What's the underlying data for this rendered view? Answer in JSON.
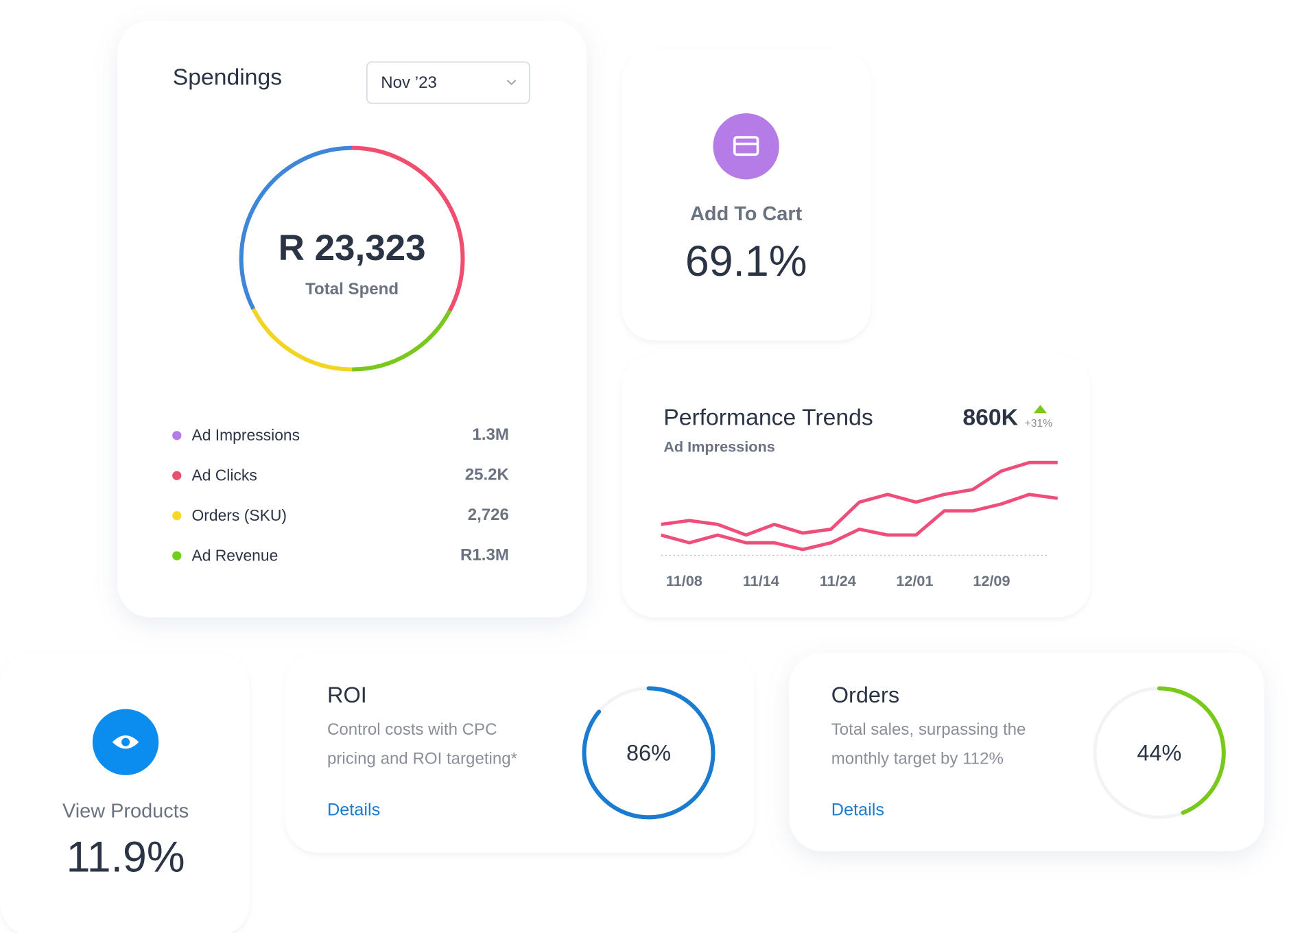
{
  "spendings": {
    "title": "Spendings",
    "period": "Nov ’23",
    "total": "R 23,323",
    "total_label": "Total Spend",
    "items": [
      {
        "label": "Ad Impressions",
        "value": "1.3M",
        "color": "#b57be6"
      },
      {
        "label": "Ad Clicks",
        "value": "25.2K",
        "color": "#e9506f"
      },
      {
        "label": "Orders (SKU)",
        "value": "2,726",
        "color": "#f5d829"
      },
      {
        "label": "Ad Revenue",
        "value": "R1.3M",
        "color": "#6fcf1b"
      }
    ]
  },
  "add_to_cart": {
    "label": "Add To Cart",
    "value": "69.1%"
  },
  "chart_data": {
    "type": "line",
    "title": "Performance Trends",
    "subtitle": "Ad Impressions",
    "headline": "860K",
    "change": "+31%",
    "xticks": [
      "11/08",
      "11/14",
      "11/24",
      "12/01",
      "12/09"
    ],
    "ylim": [
      0,
      100
    ],
    "series": [
      {
        "color": "#ef4e7b",
        "values": [
          32,
          36,
          32,
          21,
          32,
          23,
          27,
          55,
          63,
          55,
          63,
          68,
          87,
          96,
          96
        ]
      },
      {
        "color": "#ef4e7b",
        "values": [
          21,
          13,
          21,
          13,
          13,
          6,
          13,
          27,
          21,
          21,
          46,
          46,
          53,
          63,
          59
        ]
      }
    ]
  },
  "view_products": {
    "label": "View Products",
    "value": "11.9%"
  },
  "roi": {
    "title": "ROI",
    "description": [
      "Control costs with CPC",
      "pricing and ROI targeting*"
    ],
    "link": "Details",
    "progress": 86,
    "progress_label": "86%",
    "color": "#1a7bd0"
  },
  "orders": {
    "title": "Orders",
    "description": [
      "Total sales, surpassing the",
      "monthly target by 112%"
    ],
    "link": "Details",
    "progress": 44,
    "progress_label": "44%",
    "color": "#79c91a"
  }
}
